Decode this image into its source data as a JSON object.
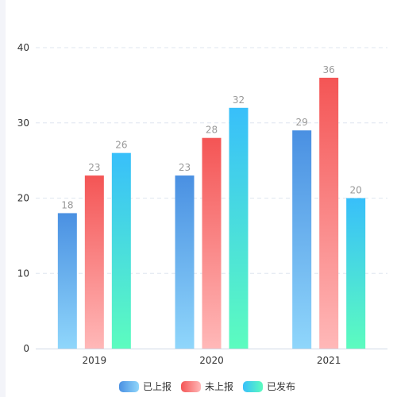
{
  "chart_data": {
    "type": "bar",
    "categories": [
      "2019",
      "2020",
      "2021"
    ],
    "series": [
      {
        "name": "已上报",
        "values": [
          18,
          23,
          29
        ],
        "color_top": "#4a90e2",
        "color_bottom": "#8fd6fb"
      },
      {
        "name": "未上报",
        "values": [
          23,
          28,
          36
        ],
        "color_top": "#f45555",
        "color_bottom": "#ffb8b8"
      },
      {
        "name": "已发布",
        "values": [
          26,
          32,
          20
        ],
        "color_top": "#38bffa",
        "color_bottom": "#5cfcbf"
      }
    ],
    "y_ticks": [
      "0",
      "10",
      "20",
      "30",
      "40"
    ],
    "ylim": [
      0,
      40
    ],
    "grid": true,
    "legend_position": "bottom-center"
  }
}
